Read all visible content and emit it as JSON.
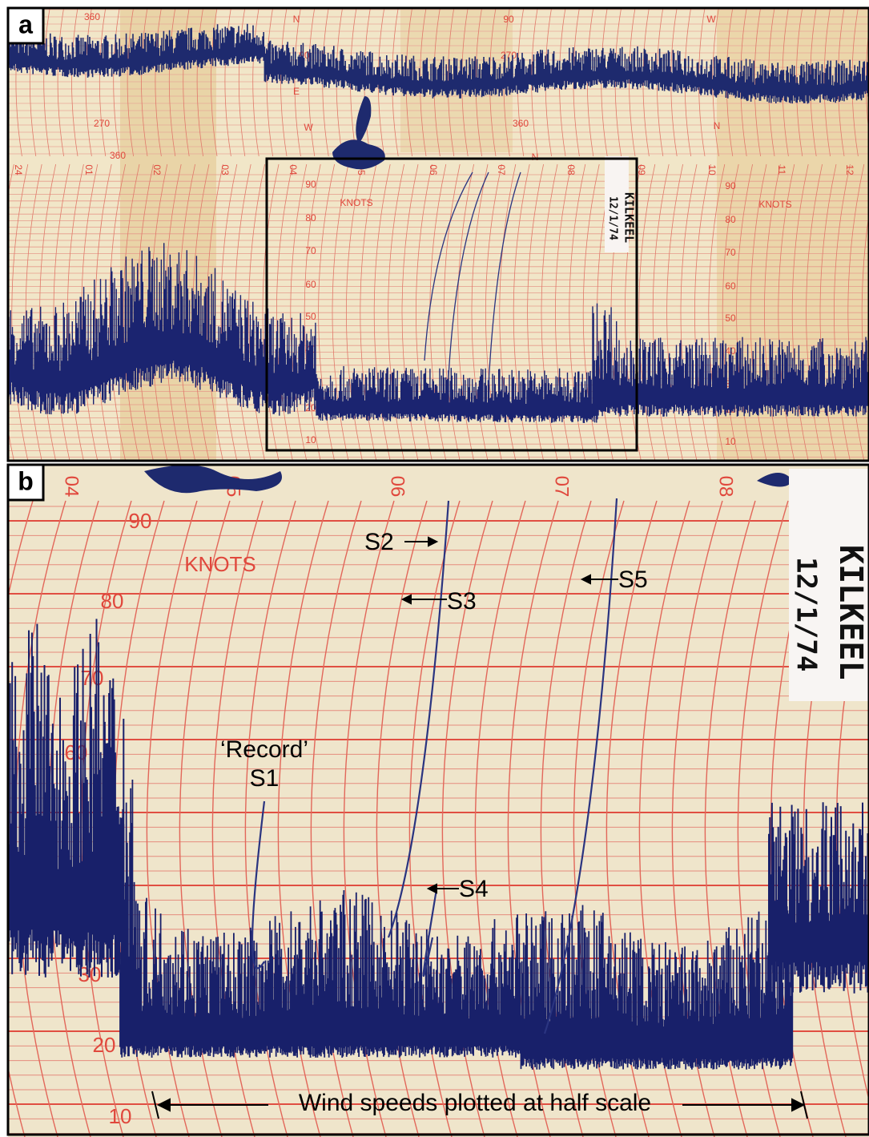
{
  "panel_a": {
    "label": "a",
    "hours": [
      "24",
      "01",
      "02",
      "03",
      "04",
      "05",
      "06",
      "07",
      "08",
      "09",
      "10",
      "11",
      "12"
    ],
    "compass": [
      "360",
      "N",
      "90",
      "E",
      "270",
      "W",
      "360",
      "90",
      "270",
      "360",
      "N",
      "W",
      "N"
    ],
    "knots_label": "KNOTS",
    "speed_labels": [
      "90",
      "80",
      "70",
      "60",
      "50",
      "40",
      "30",
      "20",
      "10"
    ],
    "station": "KILKEEL",
    "date": "12/1/74"
  },
  "panel_b": {
    "label": "b",
    "hours": [
      "04",
      "05",
      "06",
      "07",
      "08"
    ],
    "knots_label": "KNOTS",
    "speed_labels": [
      "90",
      "80",
      "70",
      "60",
      "30",
      "20",
      "10"
    ],
    "station": "KILKEEL",
    "date": "12/1/74",
    "annotations": {
      "record": "‘Record’",
      "s1": "S1",
      "s2": "S2",
      "s3": "S3",
      "s4": "S4",
      "s5": "S5",
      "scale_note": "Wind speeds plotted at half scale"
    }
  }
}
